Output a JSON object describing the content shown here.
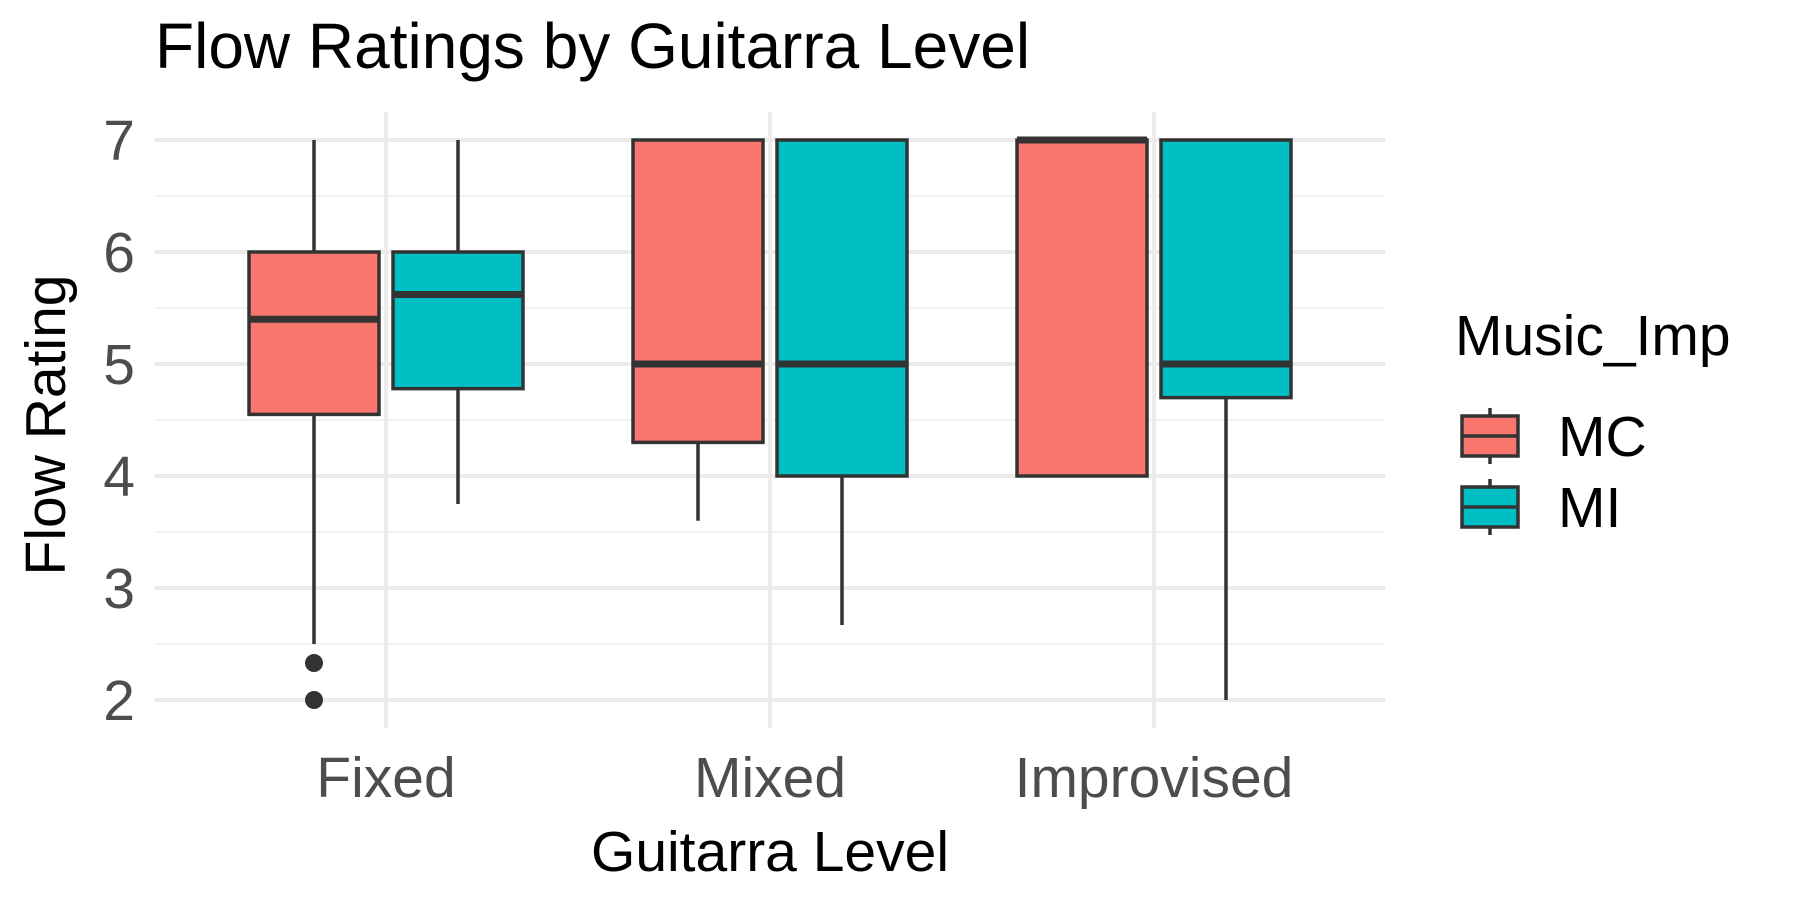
{
  "chart_data": {
    "type": "boxplot",
    "title": "Flow Ratings by Guitarra Level",
    "xlabel": "Guitarra Level",
    "ylabel": "Flow Rating",
    "categories": [
      "Fixed",
      "Mixed",
      "Improvised"
    ],
    "ylim": [
      1.75,
      7.25
    ],
    "yticks": [
      2,
      3,
      4,
      5,
      6,
      7
    ],
    "grid": true,
    "legend": {
      "title": "Music_Imp",
      "position": "right"
    },
    "series": [
      {
        "name": "MC",
        "color": "#F8766D",
        "boxes": [
          {
            "category": "Fixed",
            "whisker_low": 2.5,
            "q1": 4.55,
            "median": 5.4,
            "q3": 6.0,
            "whisker_high": 7.0,
            "outliers": [
              2.33,
              2.0
            ]
          },
          {
            "category": "Mixed",
            "whisker_low": 3.6,
            "q1": 4.3,
            "median": 5.0,
            "q3": 7.0,
            "whisker_high": 7.0,
            "outliers": []
          },
          {
            "category": "Improvised",
            "whisker_low": 4.0,
            "q1": 4.0,
            "median": 7.0,
            "q3": 7.0,
            "whisker_high": 7.0,
            "outliers": []
          }
        ]
      },
      {
        "name": "MI",
        "color": "#00BFC4",
        "boxes": [
          {
            "category": "Fixed",
            "whisker_low": 3.75,
            "q1": 4.78,
            "median": 5.62,
            "q3": 6.0,
            "whisker_high": 7.0,
            "outliers": []
          },
          {
            "category": "Mixed",
            "whisker_low": 2.67,
            "q1": 4.0,
            "median": 5.0,
            "q3": 7.0,
            "whisker_high": 7.0,
            "outliers": []
          },
          {
            "category": "Improvised",
            "whisker_low": 2.0,
            "q1": 4.7,
            "median": 5.0,
            "q3": 7.0,
            "whisker_high": 7.0,
            "outliers": []
          }
        ]
      }
    ]
  }
}
